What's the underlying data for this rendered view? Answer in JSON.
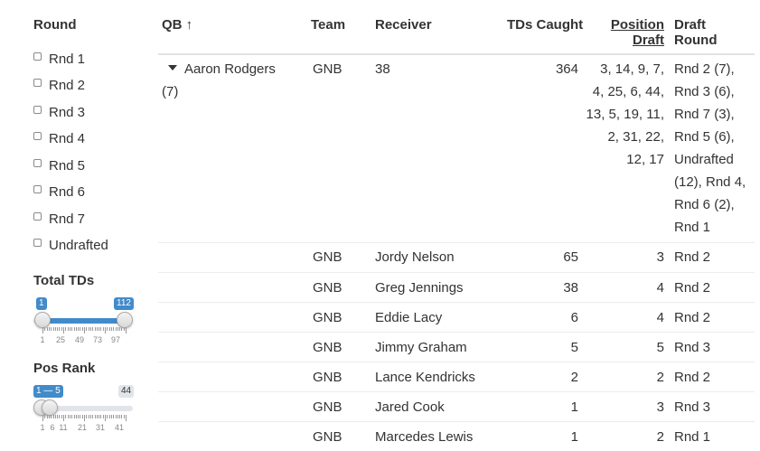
{
  "sidebar": {
    "round_title": "Round",
    "rounds": [
      "Rnd 1",
      "Rnd 2",
      "Rnd 3",
      "Rnd 4",
      "Rnd 5",
      "Rnd 6",
      "Rnd 7",
      "Undrafted"
    ],
    "total_tds": {
      "title": "Total TDs",
      "min": 1,
      "max": 112,
      "low_label": "1",
      "high_label": "112",
      "tick_labels": [
        "1",
        "25",
        "49",
        "73",
        "97"
      ]
    },
    "pos_rank": {
      "title": "Pos Rank",
      "min": 1,
      "max": 44,
      "range_label": "1 — 5",
      "max_label": "44",
      "value_low": 1,
      "value_high": 5,
      "tick_labels": [
        "1",
        "6",
        "11",
        "21",
        "31",
        "41"
      ]
    }
  },
  "table": {
    "headers": {
      "qb": "QB ↑",
      "team": "Team",
      "receiver": "Receiver",
      "tds": "TDs Caught",
      "pos_draft_1": "Position",
      "pos_draft_2": "Draft",
      "round_1": "Draft",
      "round_2": "Round"
    },
    "group": {
      "qb_name": "Aaron Rodgers",
      "qb_count": "(7)",
      "team": "GNB",
      "receiver": "38",
      "tds": "364",
      "pos_draft": "3, 14, 9, 7, 4, 25, 6, 44, 13, 5, 19, 11, 2, 31, 22, 12, 17",
      "draft_round": "Rnd 2 (7), Rnd 3 (6), Rnd 7 (3), Rnd 5 (6), Undrafted (12), Rnd 4, Rnd 6 (2), Rnd 1"
    },
    "rows": [
      {
        "team": "GNB",
        "receiver": "Jordy Nelson",
        "tds": "65",
        "pos": "3",
        "round": "Rnd 2"
      },
      {
        "team": "GNB",
        "receiver": "Greg Jennings",
        "tds": "38",
        "pos": "4",
        "round": "Rnd 2"
      },
      {
        "team": "GNB",
        "receiver": "Eddie Lacy",
        "tds": "6",
        "pos": "4",
        "round": "Rnd 2"
      },
      {
        "team": "GNB",
        "receiver": "Jimmy Graham",
        "tds": "5",
        "pos": "5",
        "round": "Rnd 3"
      },
      {
        "team": "GNB",
        "receiver": "Lance Kendricks",
        "tds": "2",
        "pos": "2",
        "round": "Rnd 2"
      },
      {
        "team": "GNB",
        "receiver": "Jared Cook",
        "tds": "1",
        "pos": "3",
        "round": "Rnd 3"
      },
      {
        "team": "GNB",
        "receiver": "Marcedes Lewis",
        "tds": "1",
        "pos": "2",
        "round": "Rnd 1"
      }
    ]
  },
  "colors": {
    "accent": "#428bca",
    "track": "#e1e4e9",
    "text": "#333333"
  }
}
